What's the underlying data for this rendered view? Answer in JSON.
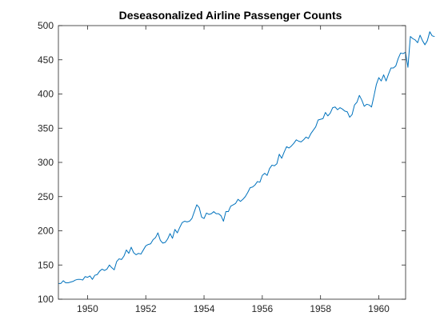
{
  "chart_data": {
    "type": "line",
    "title": "Deseasonalized Airline Passenger Counts",
    "xlabel": "",
    "ylabel": "",
    "xlim": [
      1949,
      1960.92
    ],
    "ylim": [
      100,
      500
    ],
    "xticks": [
      1950,
      1952,
      1954,
      1956,
      1958,
      1960
    ],
    "yticks": [
      100,
      150,
      200,
      250,
      300,
      350,
      400,
      450,
      500
    ],
    "grid": false,
    "line_color": "#0072BD",
    "series": [
      {
        "x_start": 1949,
        "x_step": 0.0833333,
        "values": [
          123,
          123,
          127,
          124,
          124,
          125,
          126,
          128,
          129,
          129,
          128,
          133,
          132,
          134,
          129,
          135,
          136,
          141,
          144,
          142,
          144,
          150,
          146,
          143,
          155,
          159,
          158,
          163,
          172,
          167,
          176,
          168,
          165,
          167,
          166,
          172,
          178,
          180,
          181,
          187,
          190,
          197,
          186,
          182,
          183,
          188,
          196,
          189,
          202,
          197,
          205,
          212,
          214,
          213,
          214,
          218,
          228,
          238,
          234,
          220,
          218,
          226,
          224,
          225,
          228,
          225,
          225,
          222,
          214,
          228,
          228,
          236,
          238,
          240,
          246,
          243,
          246,
          250,
          256,
          263,
          264,
          267,
          272,
          271,
          281,
          284,
          281,
          291,
          296,
          295,
          298,
          312,
          306,
          315,
          323,
          321,
          324,
          328,
          333,
          331,
          330,
          333,
          337,
          335,
          342,
          347,
          352,
          362,
          363,
          364,
          373,
          368,
          372,
          380,
          381,
          377,
          380,
          378,
          375,
          374,
          366,
          370,
          384,
          388,
          398,
          391,
          382,
          385,
          384,
          381,
          397,
          414,
          424,
          419,
          428,
          419,
          429,
          438,
          438,
          441,
          452,
          460,
          459,
          461,
          439,
          484,
          481,
          479,
          475,
          486,
          478,
          472,
          478,
          491,
          485,
          484
        ]
      }
    ]
  }
}
